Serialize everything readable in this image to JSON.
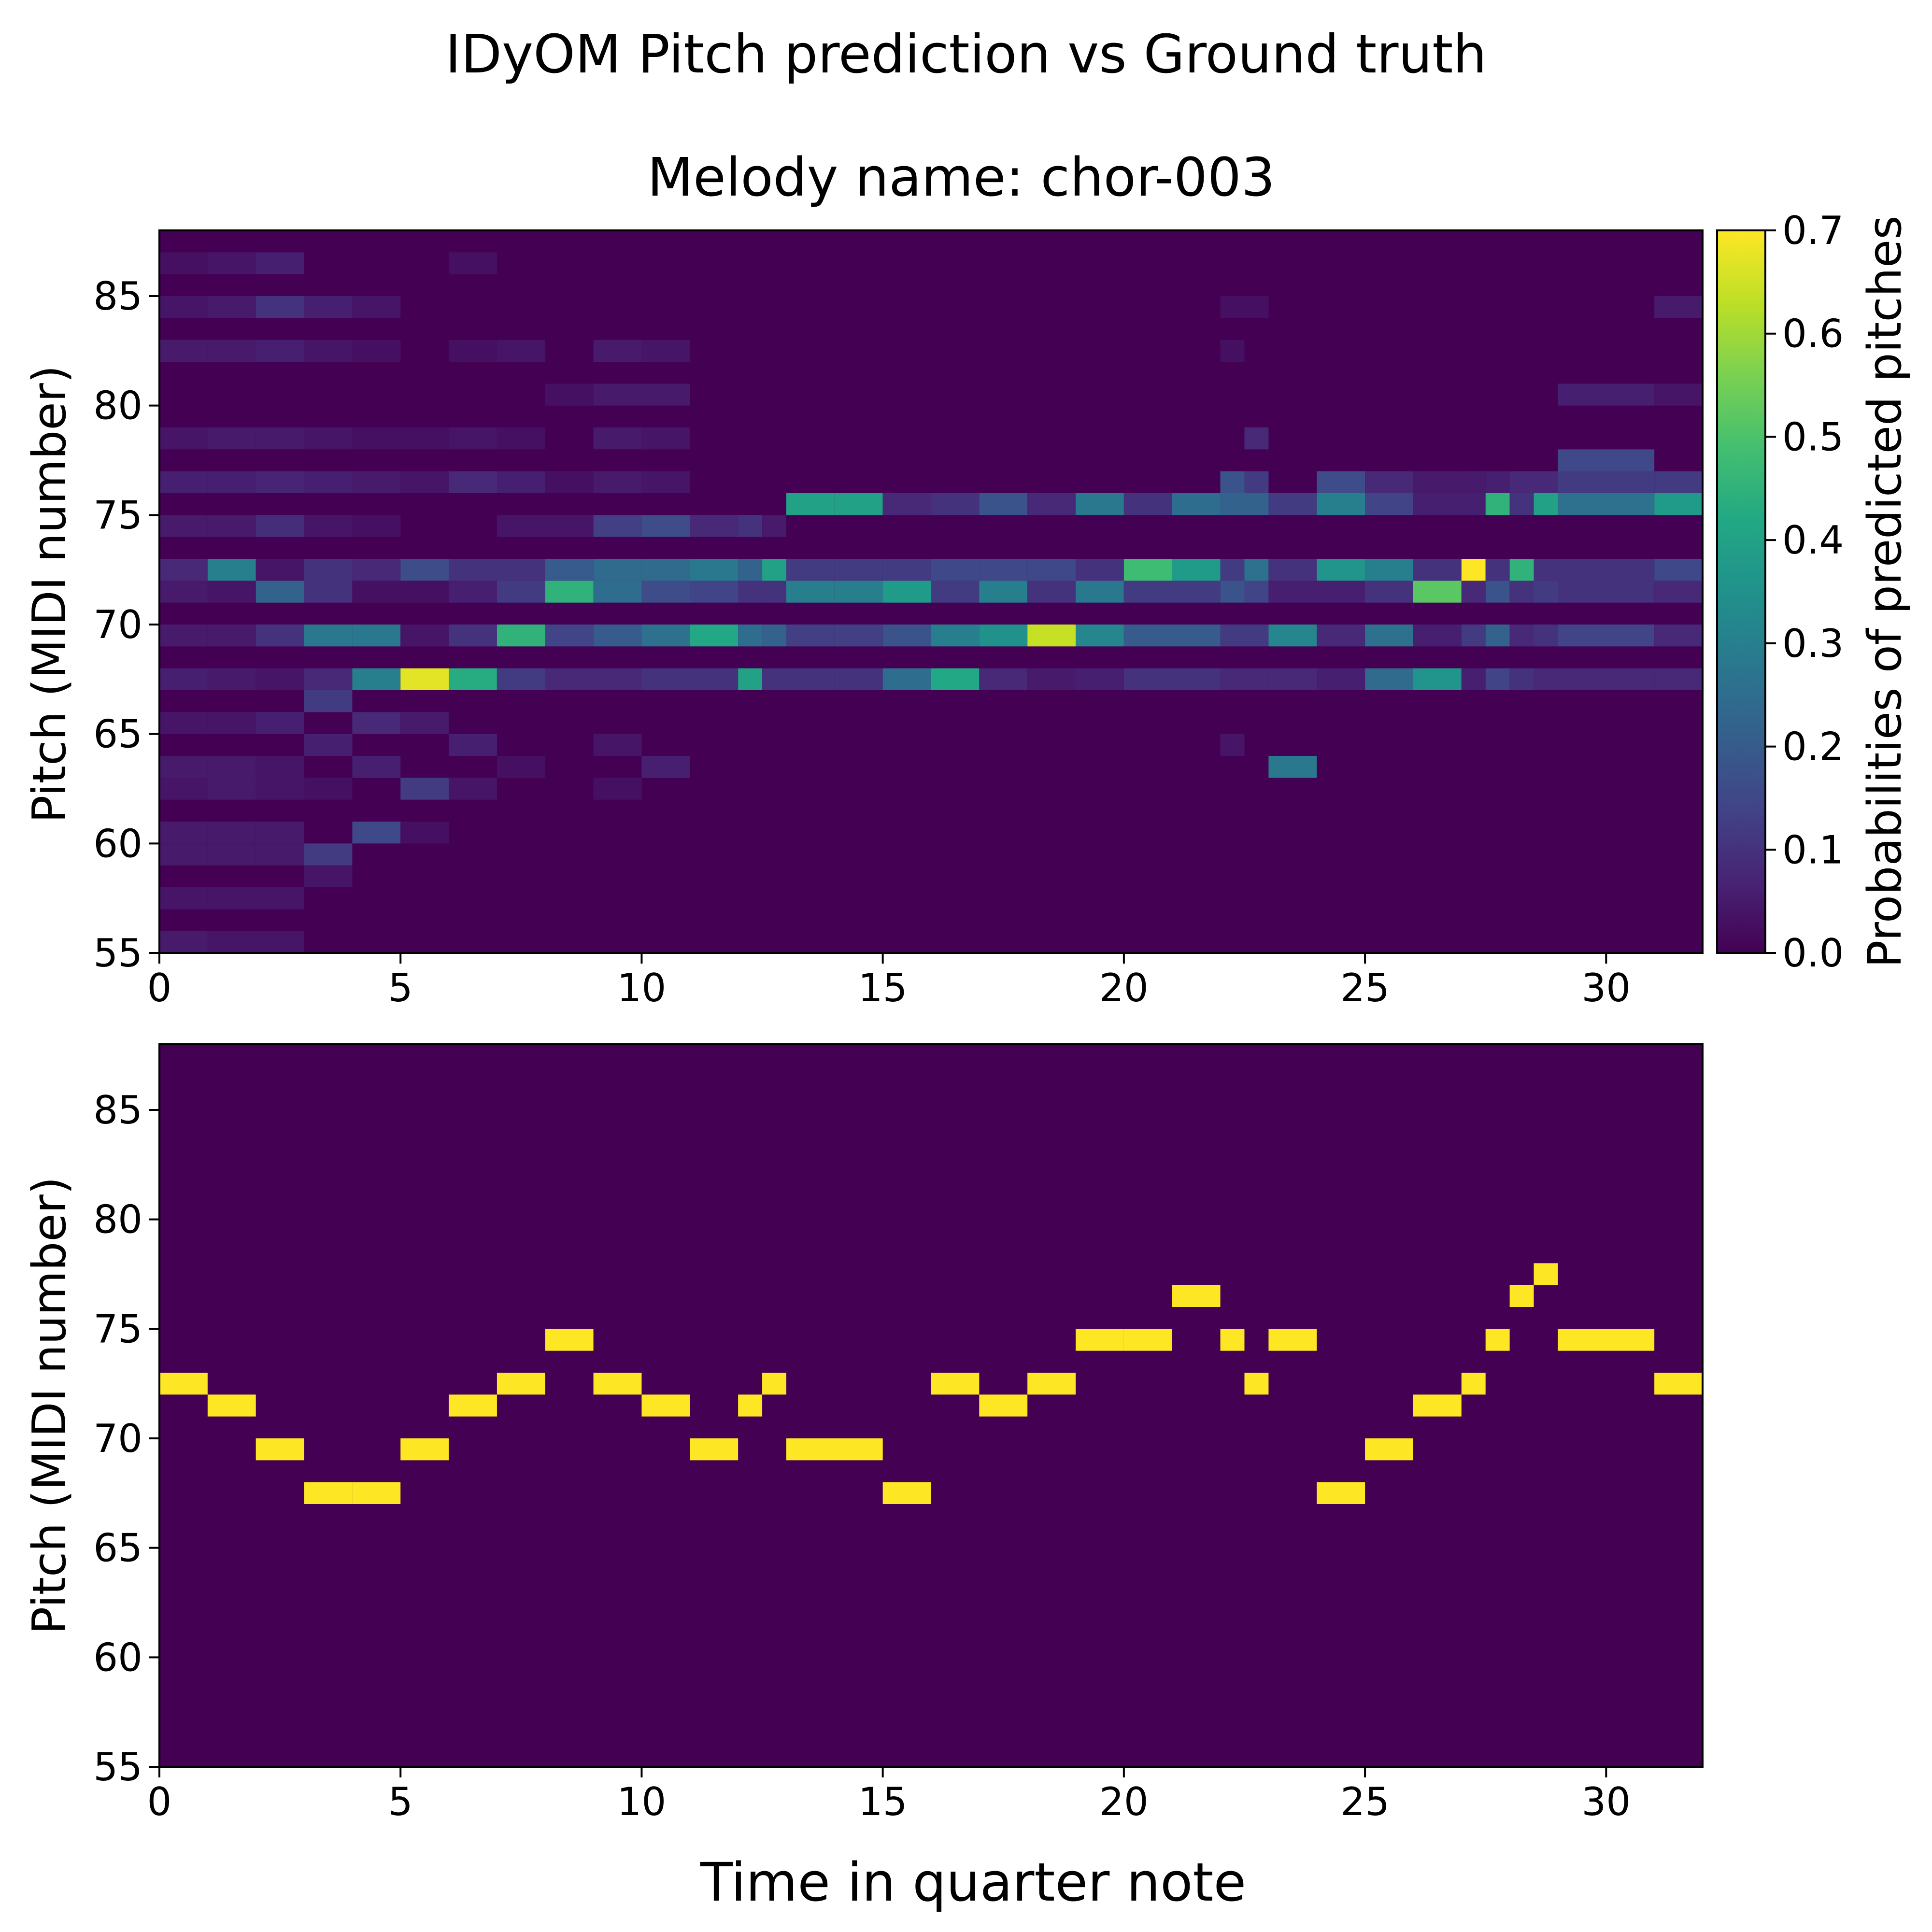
{
  "figure": {
    "suptitle": "IDyOM Pitch prediction vs Ground truth",
    "xlabel": "Time in quarter note"
  },
  "chart_data": [
    {
      "type": "heatmap",
      "title": "Melody name: chor-003",
      "ylabel": "Pitch (MIDI number)",
      "xlim": [
        0,
        32
      ],
      "ylim": [
        55,
        88
      ],
      "xticks": [
        0,
        5,
        10,
        15,
        20,
        25,
        30
      ],
      "yticks": [
        55,
        60,
        65,
        70,
        75,
        80,
        85
      ],
      "colormap": "viridis",
      "colorbar": {
        "label": "Probabilities of predicted pitches",
        "range": [
          0.0,
          0.7
        ],
        "ticks": [
          "0.0",
          "0.1",
          "0.2",
          "0.3",
          "0.4",
          "0.5",
          "0.6",
          "0.7"
        ]
      },
      "background_probability": 0.0,
      "events": [
        {
          "t": 0,
          "d": 1,
          "p": {
            "86": 0.03,
            "84": 0.04,
            "82": 0.05,
            "78": 0.04,
            "76": 0.06,
            "74": 0.05,
            "72": 0.08,
            "71": 0.05,
            "69": 0.05,
            "67": 0.06,
            "65": 0.04,
            "63": 0.05,
            "62": 0.04,
            "60": 0.05,
            "59": 0.05,
            "57": 0.04,
            "55": 0.05
          }
        },
        {
          "t": 1,
          "d": 1,
          "p": {
            "86": 0.04,
            "84": 0.05,
            "82": 0.05,
            "78": 0.05,
            "76": 0.06,
            "74": 0.05,
            "72": 0.3,
            "71": 0.04,
            "69": 0.05,
            "67": 0.05,
            "65": 0.04,
            "63": 0.05,
            "62": 0.05,
            "60": 0.05,
            "59": 0.05,
            "57": 0.04,
            "55": 0.04
          }
        },
        {
          "t": 2,
          "d": 1,
          "p": {
            "86": 0.06,
            "84": 0.1,
            "82": 0.06,
            "78": 0.05,
            "76": 0.07,
            "74": 0.09,
            "72": 0.04,
            "71": 0.22,
            "69": 0.1,
            "67": 0.04,
            "65": 0.06,
            "63": 0.04,
            "62": 0.04,
            "60": 0.05,
            "59": 0.05,
            "57": 0.04,
            "55": 0.04
          }
        },
        {
          "t": 3,
          "d": 1,
          "p": {
            "84": 0.06,
            "82": 0.04,
            "78": 0.04,
            "76": 0.06,
            "74": 0.04,
            "72": 0.1,
            "71": 0.1,
            "69": 0.28,
            "67": 0.08,
            "66": 0.12,
            "64": 0.06,
            "62": 0.03,
            "59": 0.12,
            "58": 0.04
          }
        },
        {
          "t": 4,
          "d": 1,
          "p": {
            "84": 0.04,
            "82": 0.03,
            "78": 0.03,
            "76": 0.05,
            "74": 0.03,
            "72": 0.08,
            "71": 0.03,
            "69": 0.28,
            "67": 0.3,
            "65": 0.08,
            "63": 0.06,
            "60": 0.15
          }
        },
        {
          "t": 5,
          "d": 1,
          "p": {
            "78": 0.03,
            "76": 0.04,
            "72": 0.16,
            "71": 0.03,
            "69": 0.04,
            "67": 0.67,
            "65": 0.05,
            "62": 0.12,
            "60": 0.03
          }
        },
        {
          "t": 6,
          "d": 1,
          "p": {
            "86": 0.03,
            "82": 0.03,
            "78": 0.04,
            "76": 0.08,
            "72": 0.1,
            "71": 0.06,
            "69": 0.1,
            "67": 0.43,
            "64": 0.06,
            "62": 0.04
          }
        },
        {
          "t": 7,
          "d": 1,
          "p": {
            "82": 0.04,
            "78": 0.03,
            "76": 0.06,
            "74": 0.04,
            "72": 0.1,
            "71": 0.12,
            "69": 0.45,
            "67": 0.12,
            "63": 0.03
          }
        },
        {
          "t": 8,
          "d": 1,
          "p": {
            "80": 0.03,
            "76": 0.03,
            "74": 0.04,
            "72": 0.2,
            "71": 0.45,
            "69": 0.14,
            "67": 0.08
          }
        },
        {
          "t": 9,
          "d": 1,
          "p": {
            "82": 0.05,
            "80": 0.05,
            "78": 0.05,
            "76": 0.05,
            "74": 0.13,
            "72": 0.24,
            "71": 0.25,
            "69": 0.2,
            "67": 0.08,
            "64": 0.04,
            "62": 0.03
          }
        },
        {
          "t": 10,
          "d": 1,
          "p": {
            "82": 0.04,
            "80": 0.05,
            "78": 0.04,
            "76": 0.04,
            "74": 0.16,
            "72": 0.24,
            "71": 0.16,
            "69": 0.26,
            "67": 0.1,
            "63": 0.06
          }
        },
        {
          "t": 11,
          "d": 1,
          "p": {
            "74": 0.08,
            "72": 0.28,
            "71": 0.14,
            "69": 0.42,
            "67": 0.1
          }
        },
        {
          "t": 12,
          "d": 0.5,
          "p": {
            "74": 0.1,
            "72": 0.22,
            "71": 0.1,
            "69": 0.25,
            "67": 0.4
          }
        },
        {
          "t": 12.5,
          "d": 0.5,
          "p": {
            "74": 0.05,
            "72": 0.4,
            "71": 0.1,
            "69": 0.22,
            "67": 0.1
          }
        },
        {
          "t": 13,
          "d": 1,
          "p": {
            "75": 0.4,
            "72": 0.12,
            "71": 0.3,
            "69": 0.13,
            "67": 0.1
          }
        },
        {
          "t": 14,
          "d": 1,
          "p": {
            "75": 0.4,
            "72": 0.12,
            "71": 0.3,
            "69": 0.13,
            "67": 0.1
          }
        },
        {
          "t": 15,
          "d": 1,
          "p": {
            "75": 0.08,
            "72": 0.12,
            "71": 0.38,
            "69": 0.18,
            "67": 0.25
          }
        },
        {
          "t": 16,
          "d": 1,
          "p": {
            "75": 0.1,
            "72": 0.15,
            "71": 0.12,
            "69": 0.3,
            "67": 0.42
          }
        },
        {
          "t": 17,
          "d": 1,
          "p": {
            "75": 0.18,
            "72": 0.15,
            "71": 0.3,
            "69": 0.35,
            "67": 0.08
          }
        },
        {
          "t": 18,
          "d": 1,
          "p": {
            "75": 0.08,
            "72": 0.15,
            "71": 0.1,
            "69": 0.64,
            "67": 0.05
          }
        },
        {
          "t": 19,
          "d": 1,
          "p": {
            "75": 0.28,
            "72": 0.1,
            "71": 0.28,
            "69": 0.32,
            "67": 0.06
          }
        },
        {
          "t": 20,
          "d": 1,
          "p": {
            "75": 0.1,
            "72": 0.48,
            "71": 0.12,
            "69": 0.2,
            "67": 0.1
          }
        },
        {
          "t": 21,
          "d": 1,
          "p": {
            "75": 0.25,
            "72": 0.38,
            "71": 0.12,
            "69": 0.2,
            "67": 0.1
          }
        },
        {
          "t": 22,
          "d": 0.5,
          "p": {
            "84": 0.03,
            "82": 0.03,
            "76": 0.18,
            "75": 0.22,
            "72": 0.12,
            "71": 0.18,
            "69": 0.12,
            "67": 0.08,
            "64": 0.04
          }
        },
        {
          "t": 22.5,
          "d": 0.5,
          "p": {
            "84": 0.03,
            "78": 0.08,
            "76": 0.12,
            "75": 0.22,
            "72": 0.26,
            "71": 0.14,
            "69": 0.12,
            "67": 0.08
          }
        },
        {
          "t": 23,
          "d": 1,
          "p": {
            "75": 0.12,
            "72": 0.1,
            "71": 0.06,
            "69": 0.32,
            "67": 0.08,
            "63": 0.28
          }
        },
        {
          "t": 24,
          "d": 1,
          "p": {
            "76": 0.16,
            "75": 0.3,
            "72": 0.36,
            "71": 0.06,
            "69": 0.08,
            "67": 0.06
          }
        },
        {
          "t": 25,
          "d": 1,
          "p": {
            "76": 0.08,
            "75": 0.14,
            "72": 0.3,
            "71": 0.1,
            "69": 0.26,
            "67": 0.24
          }
        },
        {
          "t": 26,
          "d": 1,
          "p": {
            "76": 0.05,
            "75": 0.06,
            "72": 0.1,
            "71": 0.52,
            "69": 0.06,
            "67": 0.36
          }
        },
        {
          "t": 27,
          "d": 0.5,
          "p": {
            "76": 0.05,
            "75": 0.06,
            "72": 0.7,
            "71": 0.08,
            "69": 0.12,
            "67": 0.06
          }
        },
        {
          "t": 27.5,
          "d": 0.5,
          "p": {
            "76": 0.06,
            "75": 0.45,
            "72": 0.1,
            "71": 0.18,
            "69": 0.22,
            "67": 0.14
          }
        },
        {
          "t": 28,
          "d": 0.5,
          "p": {
            "76": 0.08,
            "75": 0.1,
            "72": 0.45,
            "71": 0.1,
            "69": 0.08,
            "67": 0.1
          }
        },
        {
          "t": 28.5,
          "d": 0.5,
          "p": {
            "76": 0.08,
            "75": 0.4,
            "72": 0.1,
            "71": 0.12,
            "69": 0.1,
            "67": 0.08
          }
        },
        {
          "t": 29,
          "d": 2,
          "p": {
            "80": 0.06,
            "77": 0.15,
            "76": 0.12,
            "75": 0.26,
            "72": 0.1,
            "71": 0.1,
            "69": 0.14,
            "67": 0.08
          }
        },
        {
          "t": 31,
          "d": 1,
          "p": {
            "84": 0.05,
            "80": 0.04,
            "76": 0.12,
            "75": 0.38,
            "72": 0.15,
            "71": 0.08,
            "69": 0.08,
            "67": 0.08
          }
        }
      ]
    },
    {
      "type": "heatmap",
      "title": "",
      "ylabel": "Pitch (MIDI number)",
      "xlim": [
        0,
        32
      ],
      "ylim": [
        55,
        88
      ],
      "xticks": [
        0,
        5,
        10,
        15,
        20,
        25,
        30
      ],
      "yticks": [
        55,
        60,
        65,
        70,
        75,
        80,
        85
      ],
      "colormap": "viridis",
      "background_probability": 0.0,
      "note_probability": 1.0,
      "notes": [
        {
          "t": 0,
          "d": 1,
          "pitch": 72
        },
        {
          "t": 1,
          "d": 1,
          "pitch": 71
        },
        {
          "t": 2,
          "d": 1,
          "pitch": 69
        },
        {
          "t": 3,
          "d": 1,
          "pitch": 67
        },
        {
          "t": 4,
          "d": 1,
          "pitch": 67
        },
        {
          "t": 5,
          "d": 1,
          "pitch": 69
        },
        {
          "t": 6,
          "d": 1,
          "pitch": 71
        },
        {
          "t": 7,
          "d": 1,
          "pitch": 72
        },
        {
          "t": 8,
          "d": 1,
          "pitch": 74
        },
        {
          "t": 9,
          "d": 1,
          "pitch": 72
        },
        {
          "t": 10,
          "d": 1,
          "pitch": 71
        },
        {
          "t": 11,
          "d": 1,
          "pitch": 69
        },
        {
          "t": 12,
          "d": 0.5,
          "pitch": 71
        },
        {
          "t": 12.5,
          "d": 0.5,
          "pitch": 72
        },
        {
          "t": 13,
          "d": 2,
          "pitch": 69
        },
        {
          "t": 15,
          "d": 1,
          "pitch": 67
        },
        {
          "t": 16,
          "d": 1,
          "pitch": 72
        },
        {
          "t": 17,
          "d": 1,
          "pitch": 71
        },
        {
          "t": 18,
          "d": 1,
          "pitch": 72
        },
        {
          "t": 19,
          "d": 1,
          "pitch": 74
        },
        {
          "t": 20,
          "d": 1,
          "pitch": 74
        },
        {
          "t": 21,
          "d": 1,
          "pitch": 76
        },
        {
          "t": 22,
          "d": 0.5,
          "pitch": 74
        },
        {
          "t": 22.5,
          "d": 0.5,
          "pitch": 72
        },
        {
          "t": 23,
          "d": 1,
          "pitch": 74
        },
        {
          "t": 24,
          "d": 1,
          "pitch": 67
        },
        {
          "t": 25,
          "d": 1,
          "pitch": 69
        },
        {
          "t": 26,
          "d": 1,
          "pitch": 71
        },
        {
          "t": 27,
          "d": 0.5,
          "pitch": 72
        },
        {
          "t": 27.5,
          "d": 0.5,
          "pitch": 74
        },
        {
          "t": 28,
          "d": 0.5,
          "pitch": 76
        },
        {
          "t": 28.5,
          "d": 0.5,
          "pitch": 77
        },
        {
          "t": 29,
          "d": 2,
          "pitch": 74
        },
        {
          "t": 31,
          "d": 1,
          "pitch": 72
        }
      ]
    }
  ]
}
